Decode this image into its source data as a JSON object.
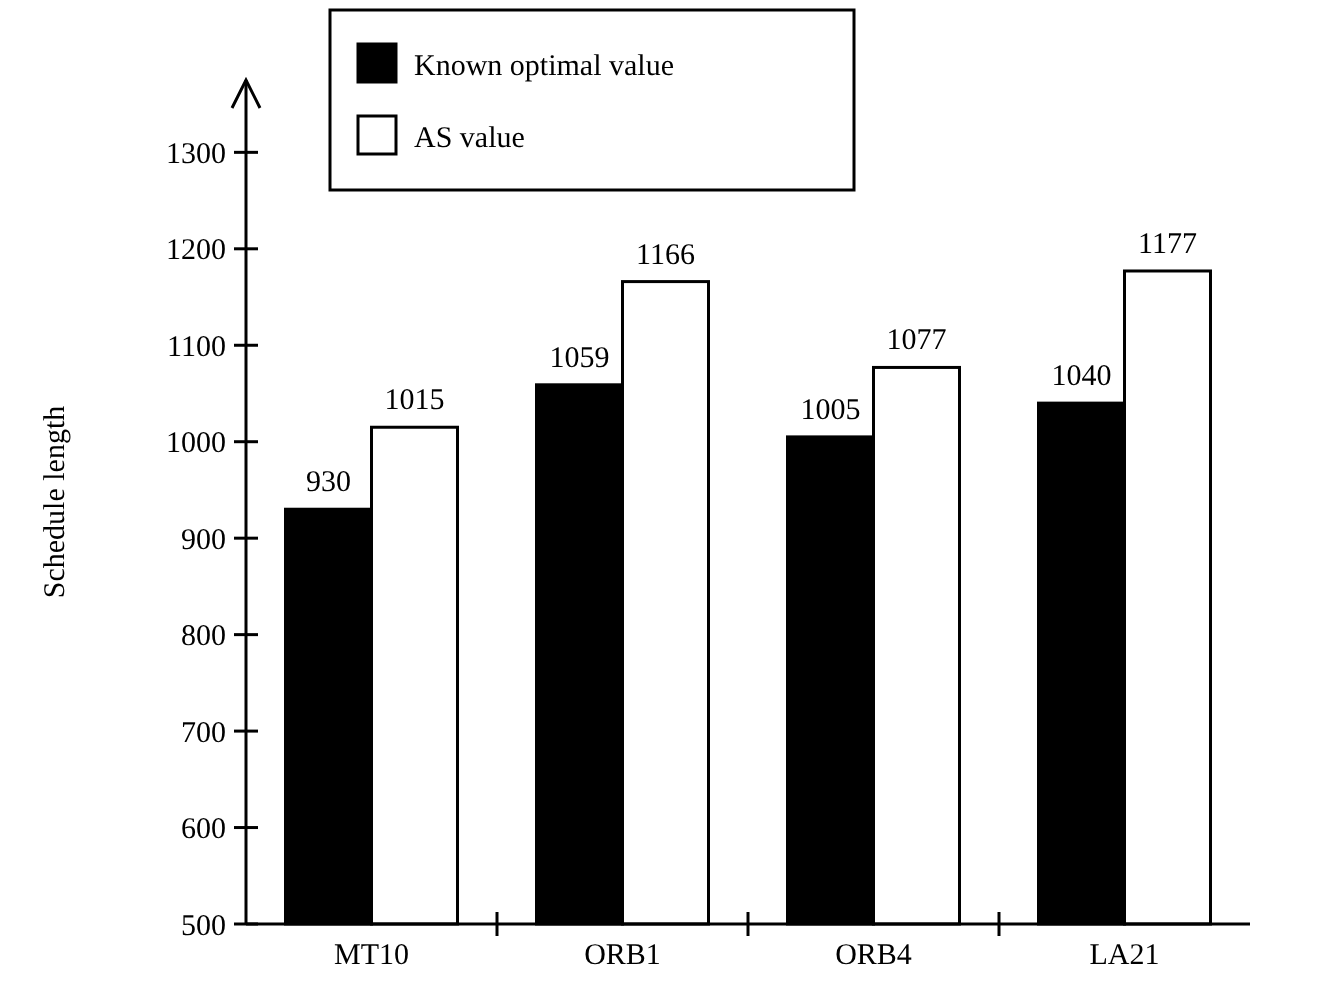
{
  "chart_data": {
    "type": "bar",
    "ylabel": "Schedule length",
    "categories": [
      "MT10",
      "ORB1",
      "ORB4",
      "LA21"
    ],
    "series": [
      {
        "name": "Known optimal value",
        "color": "#000000",
        "values": [
          930,
          1059,
          1005,
          1040
        ]
      },
      {
        "name": "AS value",
        "color": "#ffffff",
        "values": [
          1015,
          1166,
          1077,
          1177
        ]
      }
    ],
    "ylim": [
      500,
      1375
    ],
    "yticks": [
      500,
      600,
      700,
      800,
      900,
      1000,
      1100,
      1200,
      1300
    ],
    "data_labels": true,
    "legend": "top left"
  }
}
